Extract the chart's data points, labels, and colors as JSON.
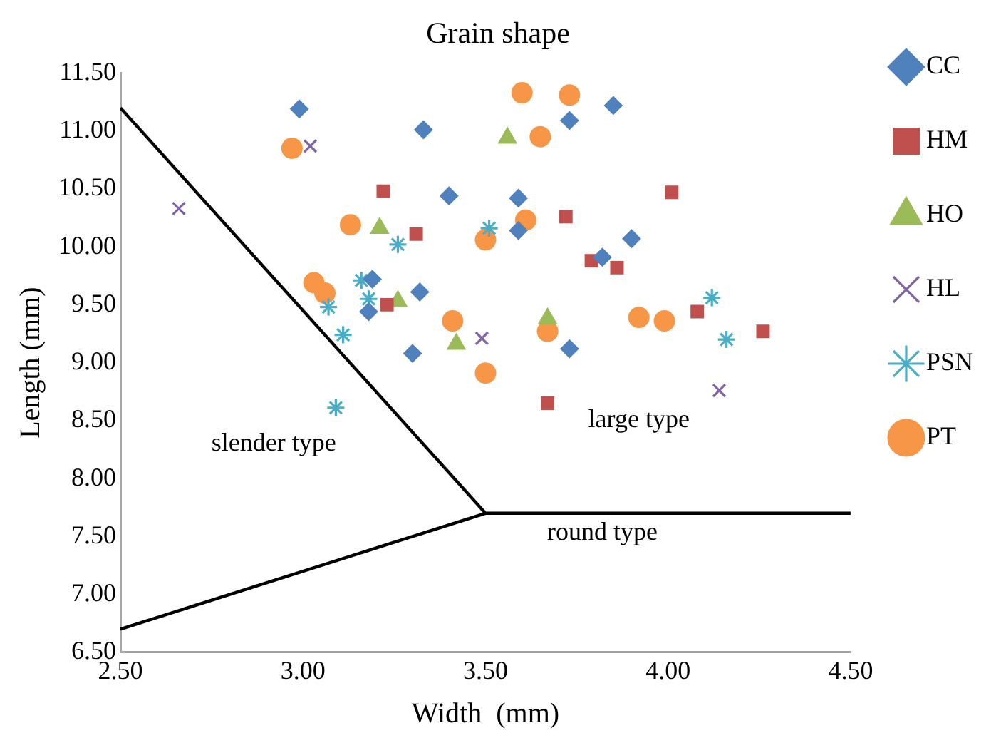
{
  "chart_data": {
    "type": "scatter",
    "title": "Grain shape",
    "xlabel": "Width  (mm)",
    "ylabel": "Length (mm)",
    "xlim": [
      2.5,
      4.5
    ],
    "xticks": [
      {
        "value": 2.5,
        "label": "2.50"
      },
      {
        "value": 3,
        "label": "3.00"
      },
      {
        "value": 3.5,
        "label": "3.50"
      },
      {
        "value": 4,
        "label": "4.00"
      },
      {
        "value": 4.5,
        "label": "4.50"
      }
    ],
    "ylim": [
      6.5,
      11.5
    ],
    "yticks": [
      {
        "value": 6.5,
        "label": "6.50"
      },
      {
        "value": 7,
        "label": "7.00"
      },
      {
        "value": 7.5,
        "label": "7.50"
      },
      {
        "value": 8,
        "label": "8.00"
      },
      {
        "value": 8.5,
        "label": "8.50"
      },
      {
        "value": 9,
        "label": "9.00"
      },
      {
        "value": 9.5,
        "label": "9.50"
      },
      {
        "value": 10,
        "label": "10.00"
      },
      {
        "value": 10.5,
        "label": "10.50"
      },
      {
        "value": 11,
        "label": "11.00"
      },
      {
        "value": 11.5,
        "label": "11.50"
      }
    ],
    "grid": false,
    "legend": "right",
    "series": [
      {
        "name": "CC",
        "color": "#4f81bd",
        "marker": "diamond",
        "x": [
          2.99,
          3.33,
          3.4,
          3.59,
          3.59,
          3.85,
          3.73,
          3.9,
          3.82,
          3.19,
          3.32,
          3.18,
          3.3,
          3.73
        ],
        "values": [
          11.19,
          11.01,
          10.44,
          10.42,
          10.14,
          11.22,
          11.09,
          10.07,
          9.91,
          9.72,
          9.61,
          9.44,
          9.08,
          9.12
        ]
      },
      {
        "name": "HM",
        "color": "#c0504d",
        "marker": "square",
        "x": [
          3.22,
          3.31,
          3.23,
          3.72,
          4.01,
          3.79,
          3.86,
          4.08,
          4.26,
          3.67
        ],
        "values": [
          10.48,
          10.11,
          9.5,
          10.26,
          10.47,
          9.88,
          9.82,
          9.44,
          9.27,
          8.65
        ]
      },
      {
        "name": "HO",
        "color": "#9bbb59",
        "marker": "triangle",
        "x": [
          3.56,
          3.21,
          3.26,
          3.42,
          3.67
        ],
        "values": [
          10.94,
          10.16,
          9.53,
          9.16,
          9.38
        ]
      },
      {
        "name": "HL",
        "color": "#8064a2",
        "marker": "cross",
        "x": [
          3.02,
          2.66,
          3.49,
          4.14
        ],
        "values": [
          10.87,
          10.33,
          9.21,
          8.76
        ]
      },
      {
        "name": "PSN",
        "color": "#4bacc6",
        "marker": "cross",
        "x": [
          3.26,
          3.16,
          3.18,
          3.07,
          3.11,
          3.09,
          3.51,
          4.12,
          4.16
        ],
        "values": [
          10.02,
          9.71,
          9.55,
          9.48,
          9.24,
          8.61,
          10.16,
          9.56,
          9.2
        ]
      },
      {
        "name": "PT",
        "color": "#f79646",
        "marker": "circle",
        "x": [
          2.97,
          3.13,
          3.03,
          3.06,
          3.5,
          3.6,
          3.73,
          3.65,
          3.61,
          3.41,
          3.5,
          3.67,
          3.92,
          3.99
        ],
        "values": [
          10.85,
          10.19,
          9.69,
          9.6,
          10.06,
          11.33,
          11.31,
          10.95,
          10.23,
          9.36,
          8.91,
          9.27,
          9.39,
          9.36
        ]
      },
      {
        "type": "line",
        "color": "#000000",
        "marker": "none",
        "x": [
          2.5,
          3.5,
          4.5
        ],
        "values": [
          11.2,
          7.7,
          7.7
        ]
      },
      {
        "type": "line",
        "color": "#000000",
        "marker": "none",
        "x": [
          2.5,
          3.5
        ],
        "values": [
          6.7,
          7.7
        ]
      }
    ],
    "annotations": [
      "slender type",
      "large type",
      "round type"
    ]
  }
}
